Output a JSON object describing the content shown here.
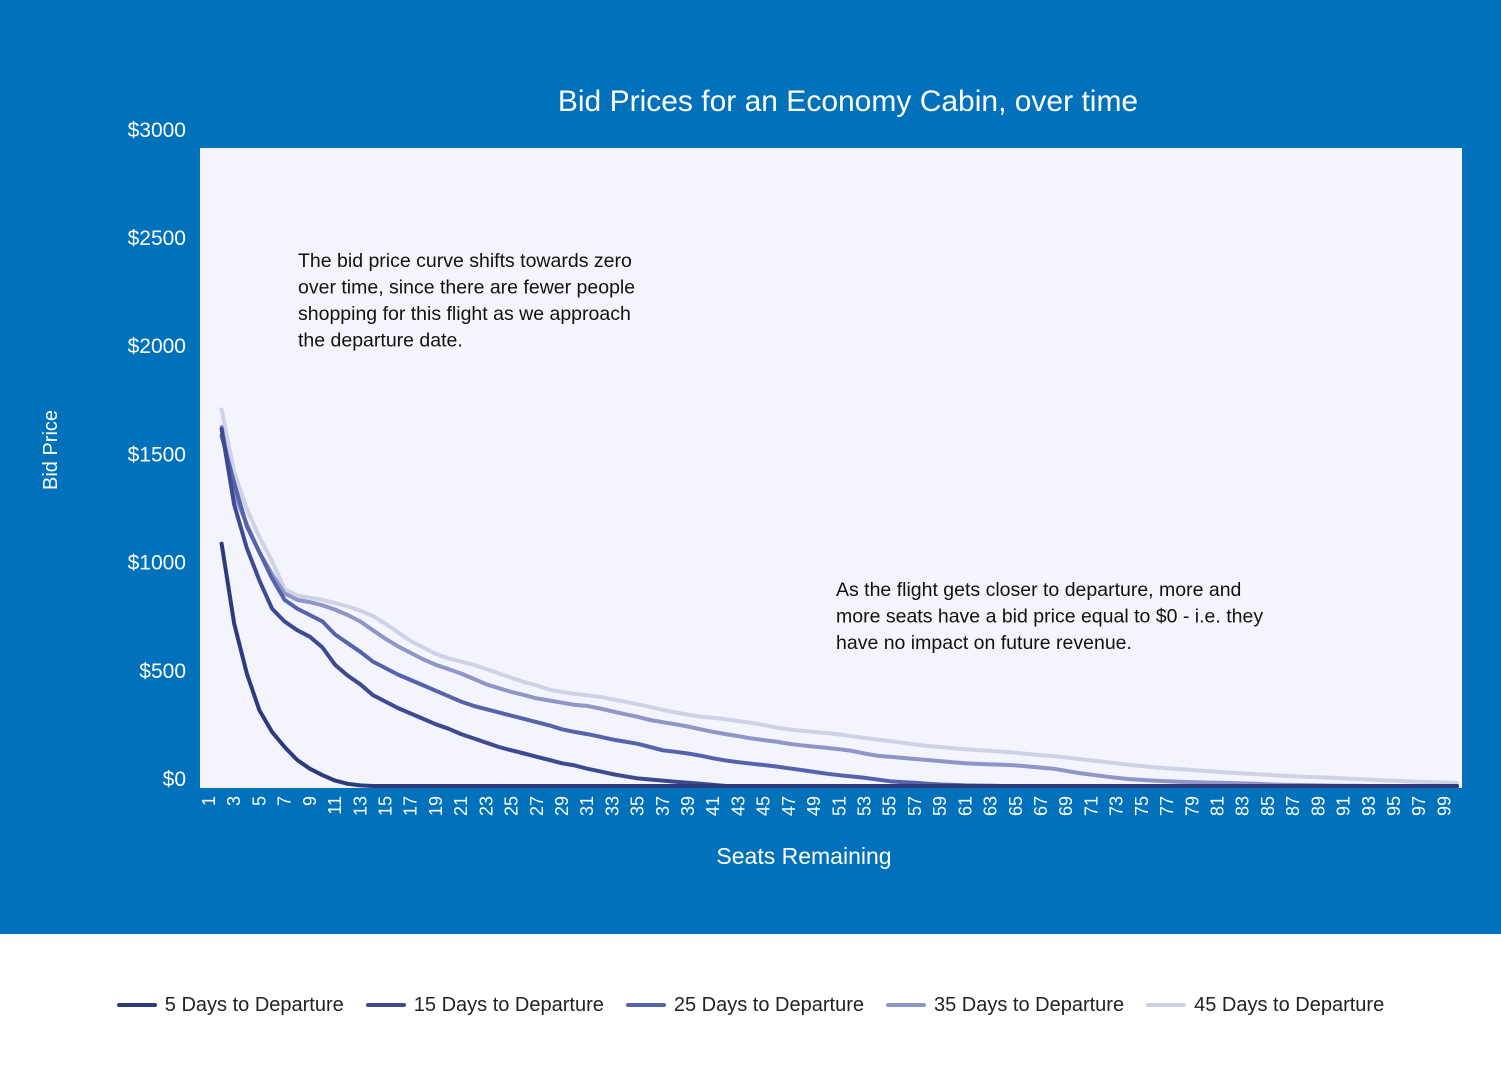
{
  "chart_data": {
    "type": "line",
    "title": "Bid Prices for an Economy Cabin, over time",
    "xlabel": "Seats Remaining",
    "ylabel": "Bid Price",
    "ylim": [
      0,
      3000
    ],
    "yticks": [
      "$0",
      "$500",
      "$1000",
      "$1500",
      "$2000",
      "$2500",
      "$3000"
    ],
    "y_tick_values": [
      0,
      500,
      1000,
      1500,
      2000,
      2500,
      3000
    ],
    "x_categories": [
      1,
      2,
      3,
      4,
      5,
      6,
      7,
      8,
      9,
      10,
      11,
      12,
      13,
      14,
      15,
      16,
      17,
      18,
      19,
      20,
      21,
      22,
      23,
      24,
      25,
      26,
      27,
      28,
      29,
      30,
      31,
      32,
      33,
      34,
      35,
      36,
      37,
      38,
      39,
      40,
      41,
      42,
      43,
      44,
      45,
      46,
      47,
      48,
      49,
      50,
      51,
      52,
      53,
      54,
      55,
      56,
      57,
      58,
      59,
      60,
      61,
      62,
      63,
      64,
      65,
      66,
      67,
      68,
      69,
      70,
      71,
      72,
      73,
      74,
      75,
      76,
      77,
      78,
      79,
      80,
      81,
      82,
      83,
      84,
      85,
      86,
      87,
      88,
      89,
      90,
      91,
      92,
      93,
      94,
      95,
      96,
      97,
      98,
      99,
      100
    ],
    "x_tick_labels": [
      "1",
      "3",
      "5",
      "7",
      "9",
      "11",
      "13",
      "15",
      "17",
      "19",
      "21",
      "23",
      "25",
      "27",
      "29",
      "31",
      "33",
      "35",
      "37",
      "39",
      "41",
      "43",
      "45",
      "47",
      "49",
      "51",
      "53",
      "55",
      "57",
      "59",
      "61",
      "63",
      "65",
      "67",
      "69",
      "71",
      "73",
      "75",
      "77",
      "79",
      "81",
      "83",
      "85",
      "87",
      "89",
      "91",
      "93",
      "95",
      "97",
      "99"
    ],
    "grid": false,
    "legend_position": "bottom",
    "series": [
      {
        "name": "5 Days to Departure",
        "color": "#2f3a7d",
        "x": [
          2,
          3,
          4,
          5,
          6,
          7,
          8,
          9,
          10,
          11,
          12,
          13,
          14,
          15,
          20,
          30,
          40,
          50,
          60,
          70,
          80,
          90,
          100
        ],
        "values": [
          1120,
          750,
          520,
          350,
          250,
          180,
          120,
          80,
          50,
          25,
          10,
          3,
          0,
          0,
          0,
          0,
          0,
          0,
          0,
          0,
          0,
          0,
          0
        ]
      },
      {
        "name": "15 Days to Departure",
        "color": "#3d4a92",
        "x": [
          2,
          3,
          4,
          5,
          6,
          7,
          8,
          9,
          10,
          11,
          12,
          13,
          14,
          15,
          16,
          17,
          18,
          19,
          20,
          21,
          22,
          23,
          24,
          25,
          26,
          27,
          28,
          29,
          30,
          31,
          32,
          33,
          34,
          35,
          36,
          37,
          38,
          39,
          40,
          41,
          42,
          43,
          44,
          50,
          60,
          70,
          80,
          90,
          100
        ],
        "values": [
          1650,
          1300,
          1100,
          950,
          820,
          760,
          720,
          690,
          640,
          560,
          510,
          470,
          420,
          390,
          360,
          335,
          310,
          285,
          265,
          240,
          220,
          200,
          180,
          165,
          150,
          135,
          120,
          105,
          95,
          80,
          68,
          55,
          45,
          35,
          30,
          25,
          20,
          15,
          10,
          5,
          0,
          0,
          0,
          0,
          0,
          0,
          0,
          0,
          0
        ]
      },
      {
        "name": "25 Days to Departure",
        "color": "#5563ad",
        "x": [
          2,
          3,
          4,
          5,
          6,
          7,
          8,
          9,
          10,
          11,
          12,
          13,
          14,
          15,
          16,
          17,
          18,
          19,
          20,
          21,
          22,
          23,
          24,
          25,
          26,
          27,
          28,
          29,
          30,
          31,
          32,
          33,
          34,
          35,
          36,
          37,
          38,
          39,
          40,
          41,
          42,
          43,
          44,
          45,
          46,
          47,
          48,
          49,
          50,
          51,
          52,
          53,
          54,
          55,
          56,
          57,
          58,
          59,
          60,
          61,
          62,
          63,
          64,
          65,
          66,
          70,
          80,
          90,
          100
        ],
        "values": [
          1620,
          1400,
          1200,
          1080,
          960,
          860,
          820,
          790,
          760,
          700,
          660,
          620,
          575,
          545,
          515,
          490,
          465,
          440,
          415,
          390,
          370,
          355,
          340,
          325,
          310,
          295,
          280,
          262,
          250,
          240,
          228,
          215,
          205,
          195,
          180,
          165,
          158,
          150,
          140,
          128,
          118,
          110,
          103,
          97,
          90,
          82,
          74,
          65,
          57,
          50,
          44,
          38,
          30,
          22,
          18,
          15,
          10,
          7,
          5,
          3,
          2,
          1,
          0,
          0,
          0,
          0,
          0,
          0,
          0
        ]
      },
      {
        "name": "35 Days to Departure",
        "color": "#8e96c8",
        "x": [
          2,
          3,
          4,
          5,
          6,
          7,
          8,
          9,
          10,
          11,
          12,
          13,
          14,
          15,
          16,
          17,
          18,
          19,
          20,
          21,
          22,
          23,
          24,
          25,
          26,
          27,
          28,
          29,
          30,
          31,
          32,
          33,
          34,
          35,
          36,
          37,
          38,
          39,
          40,
          41,
          42,
          43,
          44,
          45,
          46,
          47,
          48,
          49,
          50,
          51,
          52,
          53,
          54,
          55,
          56,
          57,
          58,
          59,
          60,
          61,
          62,
          63,
          64,
          65,
          66,
          67,
          68,
          69,
          70,
          71,
          72,
          73,
          74,
          75,
          76,
          77,
          78,
          79,
          80,
          81,
          82,
          83,
          84,
          85,
          86,
          87,
          88,
          89,
          90,
          91,
          92,
          93,
          94,
          100
        ],
        "values": [
          1660,
          1350,
          1210,
          1080,
          980,
          890,
          860,
          850,
          835,
          815,
          790,
          760,
          720,
          680,
          645,
          615,
          585,
          560,
          540,
          520,
          495,
          470,
          452,
          435,
          420,
          405,
          395,
          385,
          375,
          370,
          358,
          345,
          332,
          320,
          305,
          295,
          285,
          275,
          262,
          250,
          240,
          230,
          220,
          212,
          205,
          195,
          188,
          182,
          176,
          170,
          162,
          150,
          140,
          135,
          130,
          125,
          120,
          115,
          110,
          105,
          102,
          100,
          98,
          95,
          90,
          85,
          80,
          70,
          60,
          52,
          45,
          38,
          32,
          28,
          25,
          22,
          20,
          18,
          16,
          15,
          14,
          12,
          10,
          8,
          6,
          5,
          4,
          3,
          2,
          1,
          1,
          0,
          0,
          0
        ]
      },
      {
        "name": "45 Days to Departure",
        "color": "#cfd2e6",
        "x": [
          2,
          3,
          4,
          5,
          6,
          7,
          8,
          9,
          10,
          11,
          12,
          13,
          14,
          15,
          16,
          17,
          18,
          19,
          20,
          21,
          22,
          23,
          24,
          25,
          26,
          27,
          28,
          29,
          30,
          31,
          32,
          33,
          34,
          35,
          36,
          37,
          38,
          39,
          40,
          41,
          42,
          43,
          44,
          45,
          46,
          47,
          48,
          49,
          50,
          51,
          52,
          53,
          54,
          55,
          56,
          57,
          58,
          59,
          60,
          61,
          62,
          63,
          64,
          65,
          66,
          67,
          68,
          69,
          70,
          71,
          72,
          73,
          74,
          75,
          76,
          77,
          78,
          79,
          80,
          81,
          82,
          83,
          84,
          85,
          86,
          87,
          88,
          89,
          90,
          91,
          92,
          93,
          94,
          95,
          96,
          97,
          98,
          99,
          100
        ],
        "values": [
          1740,
          1450,
          1280,
          1150,
          1040,
          910,
          880,
          870,
          860,
          845,
          830,
          810,
          785,
          750,
          710,
          670,
          640,
          610,
          590,
          575,
          560,
          540,
          520,
          500,
          480,
          465,
          445,
          435,
          425,
          420,
          412,
          400,
          390,
          378,
          365,
          352,
          340,
          330,
          320,
          315,
          308,
          300,
          292,
          282,
          270,
          262,
          255,
          250,
          245,
          238,
          230,
          222,
          215,
          208,
          200,
          192,
          185,
          180,
          175,
          170,
          166,
          162,
          158,
          154,
          148,
          142,
          138,
          132,
          125,
          118,
          112,
          105,
          98,
          92,
          87,
          82,
          78,
          74,
          70,
          66,
          62,
          58,
          55,
          52,
          48,
          45,
          42,
          40,
          38,
          35,
          32,
          30,
          27,
          25,
          22,
          20,
          18,
          16,
          14
        ]
      }
    ],
    "annotations": [
      {
        "lines": [
          "The bid price curve shifts towards zero",
          "over time, since there are fewer people",
          "shopping for this flight as we approach",
          "the departure date."
        ]
      },
      {
        "lines": [
          "As the flight gets closer to departure, more and",
          "more seats have a bid price equal to $0 - i.e. they",
          "have no impact on future revenue."
        ]
      }
    ]
  },
  "colors": {
    "panel_background": "#0171bb",
    "plot_background": "#f4f4fc",
    "page_background": "#ffffff",
    "text_on_panel": "#ffffff",
    "annotation_text": "#111111"
  }
}
